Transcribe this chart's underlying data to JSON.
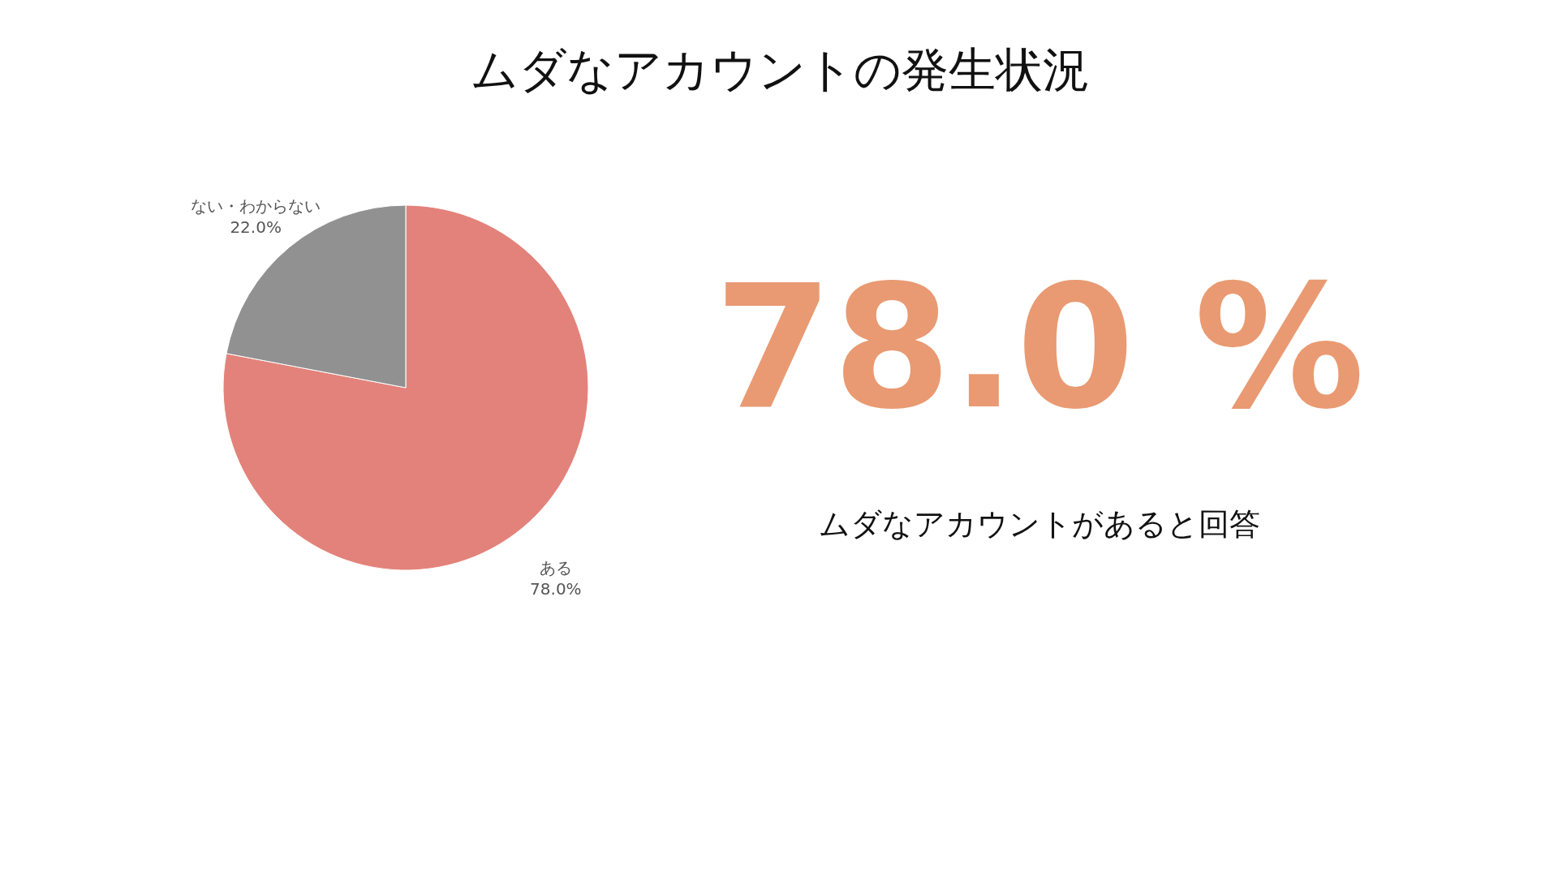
{
  "chart_data": {
    "type": "pie",
    "title": "ムダなアカウントの発生状況",
    "categories": [
      "ある",
      "ない・わからない"
    ],
    "values": [
      78.0,
      22.0
    ],
    "value_labels": [
      "78.0%",
      "22.0%"
    ],
    "colors": [
      "#e3827a",
      "#919191"
    ],
    "annotations": [
      "78.0 %",
      "ムダなアカウントがあると回答"
    ],
    "legend": false
  }
}
